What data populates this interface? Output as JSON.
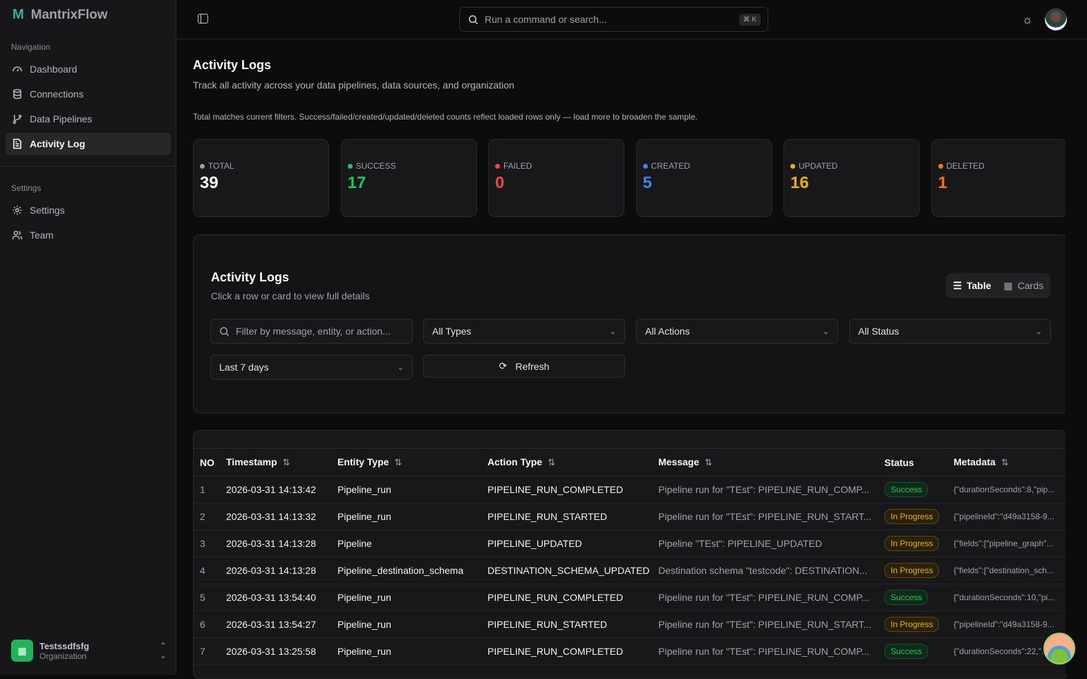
{
  "app": {
    "name": "MantrixFlow"
  },
  "sidebar": {
    "nav_label": "Navigation",
    "items": [
      {
        "label": "Dashboard",
        "icon": "gauge-icon"
      },
      {
        "label": "Connections",
        "icon": "database-icon"
      },
      {
        "label": "Data Pipelines",
        "icon": "git-branch-icon"
      },
      {
        "label": "Activity Log",
        "icon": "file-text-icon",
        "active": true
      }
    ],
    "settings_label": "Settings",
    "settings_items": [
      {
        "label": "Settings",
        "icon": "gear-icon"
      },
      {
        "label": "Team",
        "icon": "users-icon"
      }
    ],
    "org": {
      "name": "Testssdfsfg",
      "sub": "Organization"
    }
  },
  "topbar": {
    "search_placeholder": "Run a command or search...",
    "shortcut": "⌘ K"
  },
  "page": {
    "title": "Activity Logs",
    "description": "Track all activity across your data pipelines, data sources, and organization",
    "note": "Total matches current filters. Success/failed/created/updated/deleted counts reflect loaded rows only — load more to broaden the sample."
  },
  "stats": [
    {
      "label": "TOTAL",
      "value": "39",
      "color": "#a1a1aa",
      "valcolor": "#fafafa"
    },
    {
      "label": "SUCCESS",
      "value": "17",
      "color": "#22c55e",
      "valcolor": "#22c55e"
    },
    {
      "label": "FAILED",
      "value": "0",
      "color": "#ef4444",
      "valcolor": "#ef4444"
    },
    {
      "label": "CREATED",
      "value": "5",
      "color": "#3b82f6",
      "valcolor": "#3b82f6"
    },
    {
      "label": "UPDATED",
      "value": "16",
      "color": "#eab308",
      "valcolor": "#eab308"
    },
    {
      "label": "DELETED",
      "value": "1",
      "color": "#f97316",
      "valcolor": "#f97316"
    }
  ],
  "panel": {
    "title": "Activity Logs",
    "subtitle": "Click a row or card to view full details",
    "view_table": "Table",
    "view_cards": "Cards",
    "filter_placeholder": "Filter by message, entity, or action...",
    "type": "All Types",
    "action": "All Actions",
    "status": "All Status",
    "range": "Last 7 days",
    "refresh": "Refresh"
  },
  "table": {
    "columns": [
      "NO",
      "Timestamp",
      "Entity Type",
      "Action Type",
      "Message",
      "Status",
      "Metadata"
    ],
    "rows": [
      {
        "no": "1",
        "ts": "2026-03-31 14:13:42",
        "entity": "Pipeline_run",
        "action": "PIPELINE_RUN_COMPLETED",
        "message": "Pipeline run for \"TEst\": PIPELINE_RUN_COMP...",
        "status": "Success",
        "meta": "{\"durationSeconds\":8,\"pip..."
      },
      {
        "no": "2",
        "ts": "2026-03-31 14:13:32",
        "entity": "Pipeline_run",
        "action": "PIPELINE_RUN_STARTED",
        "message": "Pipeline run for \"TEst\": PIPELINE_RUN_START...",
        "status": "In Progress",
        "meta": "{\"pipelineId\":\"d49a3158-9..."
      },
      {
        "no": "3",
        "ts": "2026-03-31 14:13:28",
        "entity": "Pipeline",
        "action": "PIPELINE_UPDATED",
        "message": "Pipeline \"TEst\": PIPELINE_UPDATED",
        "status": "In Progress",
        "meta": "{\"fields\":[\"pipeline_graph\"..."
      },
      {
        "no": "4",
        "ts": "2026-03-31 14:13:28",
        "entity": "Pipeline_destination_schema",
        "action": "DESTINATION_SCHEMA_UPDATED",
        "message": "Destination schema \"testcode\": DESTINATION...",
        "status": "In Progress",
        "meta": "{\"fields\":[\"destination_sch..."
      },
      {
        "no": "5",
        "ts": "2026-03-31 13:54:40",
        "entity": "Pipeline_run",
        "action": "PIPELINE_RUN_COMPLETED",
        "message": "Pipeline run for \"TEst\": PIPELINE_RUN_COMP...",
        "status": "Success",
        "meta": "{\"durationSeconds\":10,\"pi..."
      },
      {
        "no": "6",
        "ts": "2026-03-31 13:54:27",
        "entity": "Pipeline_run",
        "action": "PIPELINE_RUN_STARTED",
        "message": "Pipeline run for \"TEst\": PIPELINE_RUN_START...",
        "status": "In Progress",
        "meta": "{\"pipelineId\":\"d49a3158-9..."
      },
      {
        "no": "7",
        "ts": "2026-03-31 13:25:58",
        "entity": "Pipeline_run",
        "action": "PIPELINE_RUN_COMPLETED",
        "message": "Pipeline run for \"TEst\": PIPELINE_RUN_COMP...",
        "status": "Success",
        "meta": "{\"durationSeconds\":22,\"..."
      }
    ]
  }
}
